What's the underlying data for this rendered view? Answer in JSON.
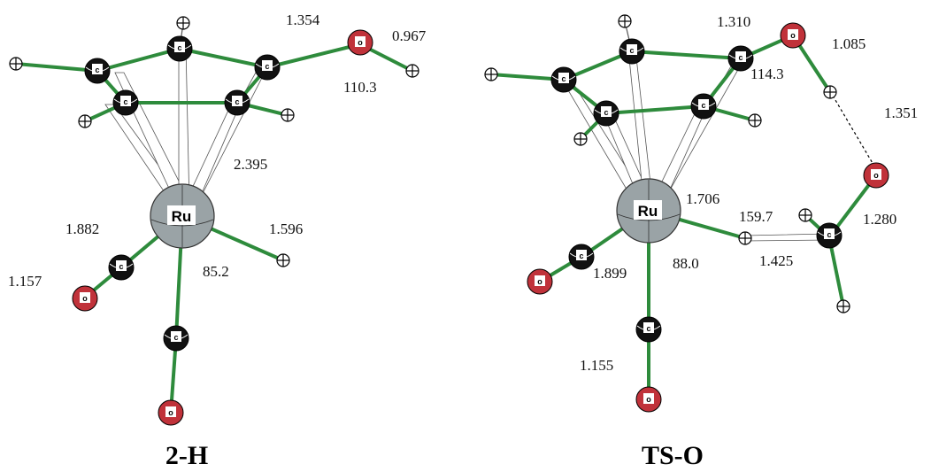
{
  "structures": [
    {
      "id": "2H",
      "title": "2-H",
      "labels": [
        "1.354",
        "0.967",
        "110.3",
        "2.395",
        "1.882",
        "1.596",
        "1.157",
        "85.2"
      ]
    },
    {
      "id": "TSO",
      "title": "TS-O",
      "labels": [
        "1.310",
        "1.085",
        "114.3",
        "1.351",
        "1.706",
        "159.7",
        "1.280",
        "1.899",
        "88.0",
        "1.425",
        "1.155"
      ]
    }
  ],
  "atom_symbols": {
    "carbon": "c",
    "oxygen": "o",
    "ruthenium": "Ru"
  },
  "colors": {
    "bond": "#2e8b3c",
    "carbon": "#111111",
    "oxygen": "#c0323a",
    "hydrogen": "#ffffff",
    "ruthenium": "#9aa3a6",
    "metal_link": "#ffffff"
  }
}
